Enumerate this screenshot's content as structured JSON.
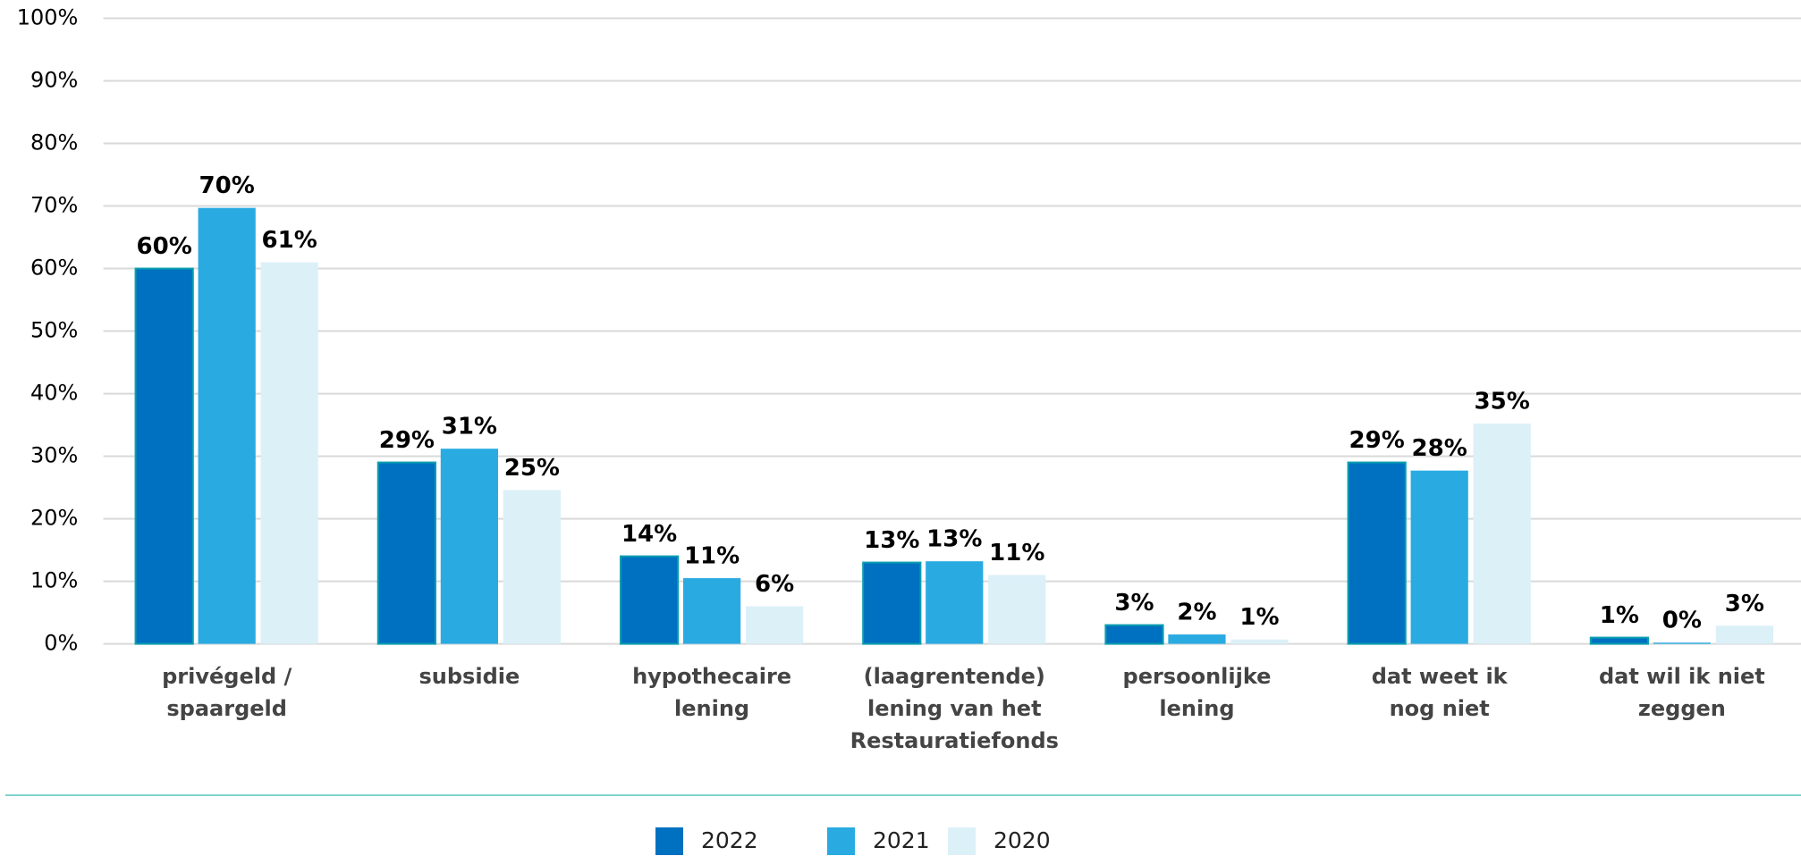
{
  "chart_data": {
    "type": "bar",
    "categories": [
      [
        "privégeld /",
        "spaargeld"
      ],
      [
        "subsidie"
      ],
      [
        "hypothecaire",
        "lening"
      ],
      [
        "(laagrentende)",
        "lening van het",
        "Restauratiefonds"
      ],
      [
        "persoonlijke",
        "lening"
      ],
      [
        "dat weet ik",
        "nog niet"
      ],
      [
        "dat wil ik niet",
        "zeggen"
      ]
    ],
    "series": [
      {
        "name": "2022",
        "color": "#0070c0",
        "values": [
          60,
          29,
          14,
          13,
          3,
          29,
          1
        ],
        "value_labels": [
          "60%",
          "29%",
          "14%",
          "13%",
          "3%",
          "29%",
          "1%"
        ]
      },
      {
        "name": "2021",
        "color": "#29abe2",
        "values": [
          69.7,
          31.2,
          10.5,
          13.2,
          1.5,
          27.7,
          0.2
        ],
        "value_labels": [
          "70%",
          "31%",
          "11%",
          "13%",
          "2%",
          "28%",
          "0%"
        ]
      },
      {
        "name": "2020",
        "color": "#dcf0f8",
        "values": [
          61,
          24.6,
          6,
          11,
          0.7,
          35.2,
          2.9
        ],
        "value_labels": [
          "61%",
          "25%",
          "6%",
          "11%",
          "1%",
          "35%",
          "3%"
        ]
      }
    ],
    "ylim": [
      0,
      100
    ],
    "yticks": [
      {
        "value": 0,
        "label": "0%"
      },
      {
        "value": 10,
        "label": "10%"
      },
      {
        "value": 20,
        "label": "20%"
      },
      {
        "value": 30,
        "label": "30%"
      },
      {
        "value": 40,
        "label": "40%"
      },
      {
        "value": 50,
        "label": "50%"
      },
      {
        "value": 60,
        "label": "60%"
      },
      {
        "value": 70,
        "label": "70%"
      },
      {
        "value": 80,
        "label": "80%"
      },
      {
        "value": 90,
        "label": "90%"
      },
      {
        "value": 100,
        "label": "100%"
      }
    ],
    "grid": true,
    "legend": "bottom"
  }
}
